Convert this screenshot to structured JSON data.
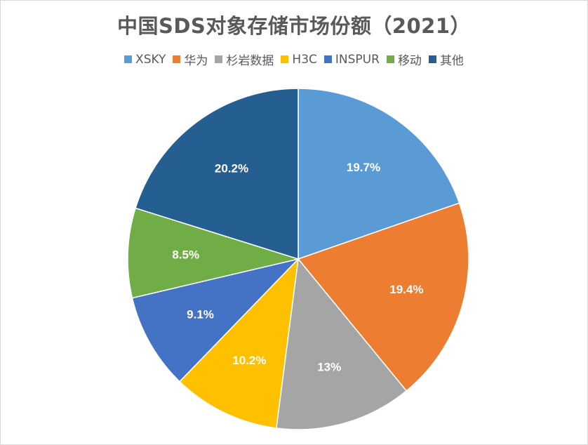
{
  "chart_data": {
    "type": "pie",
    "title": "中国SDS对象存储市场份额（2021）",
    "legend_position": "top",
    "series": [
      {
        "name": "XSKY",
        "value": 19.7,
        "label": "19.7%",
        "color": "#5b9bd5"
      },
      {
        "name": "华为",
        "value": 19.4,
        "label": "19.4%",
        "color": "#ed7d31"
      },
      {
        "name": "杉岩数据",
        "value": 13,
        "label": "13%",
        "color": "#a5a5a5"
      },
      {
        "name": "H3C",
        "value": 10.2,
        "label": "10.2%",
        "color": "#ffc000"
      },
      {
        "name": "INSPUR",
        "value": 9.1,
        "label": "9.1%",
        "color": "#4472c4"
      },
      {
        "name": "移动",
        "value": 8.5,
        "label": "8.5%",
        "color": "#70ad47"
      },
      {
        "name": "其他",
        "value": 20.2,
        "label": "20.2%",
        "color": "#255e91"
      }
    ]
  }
}
